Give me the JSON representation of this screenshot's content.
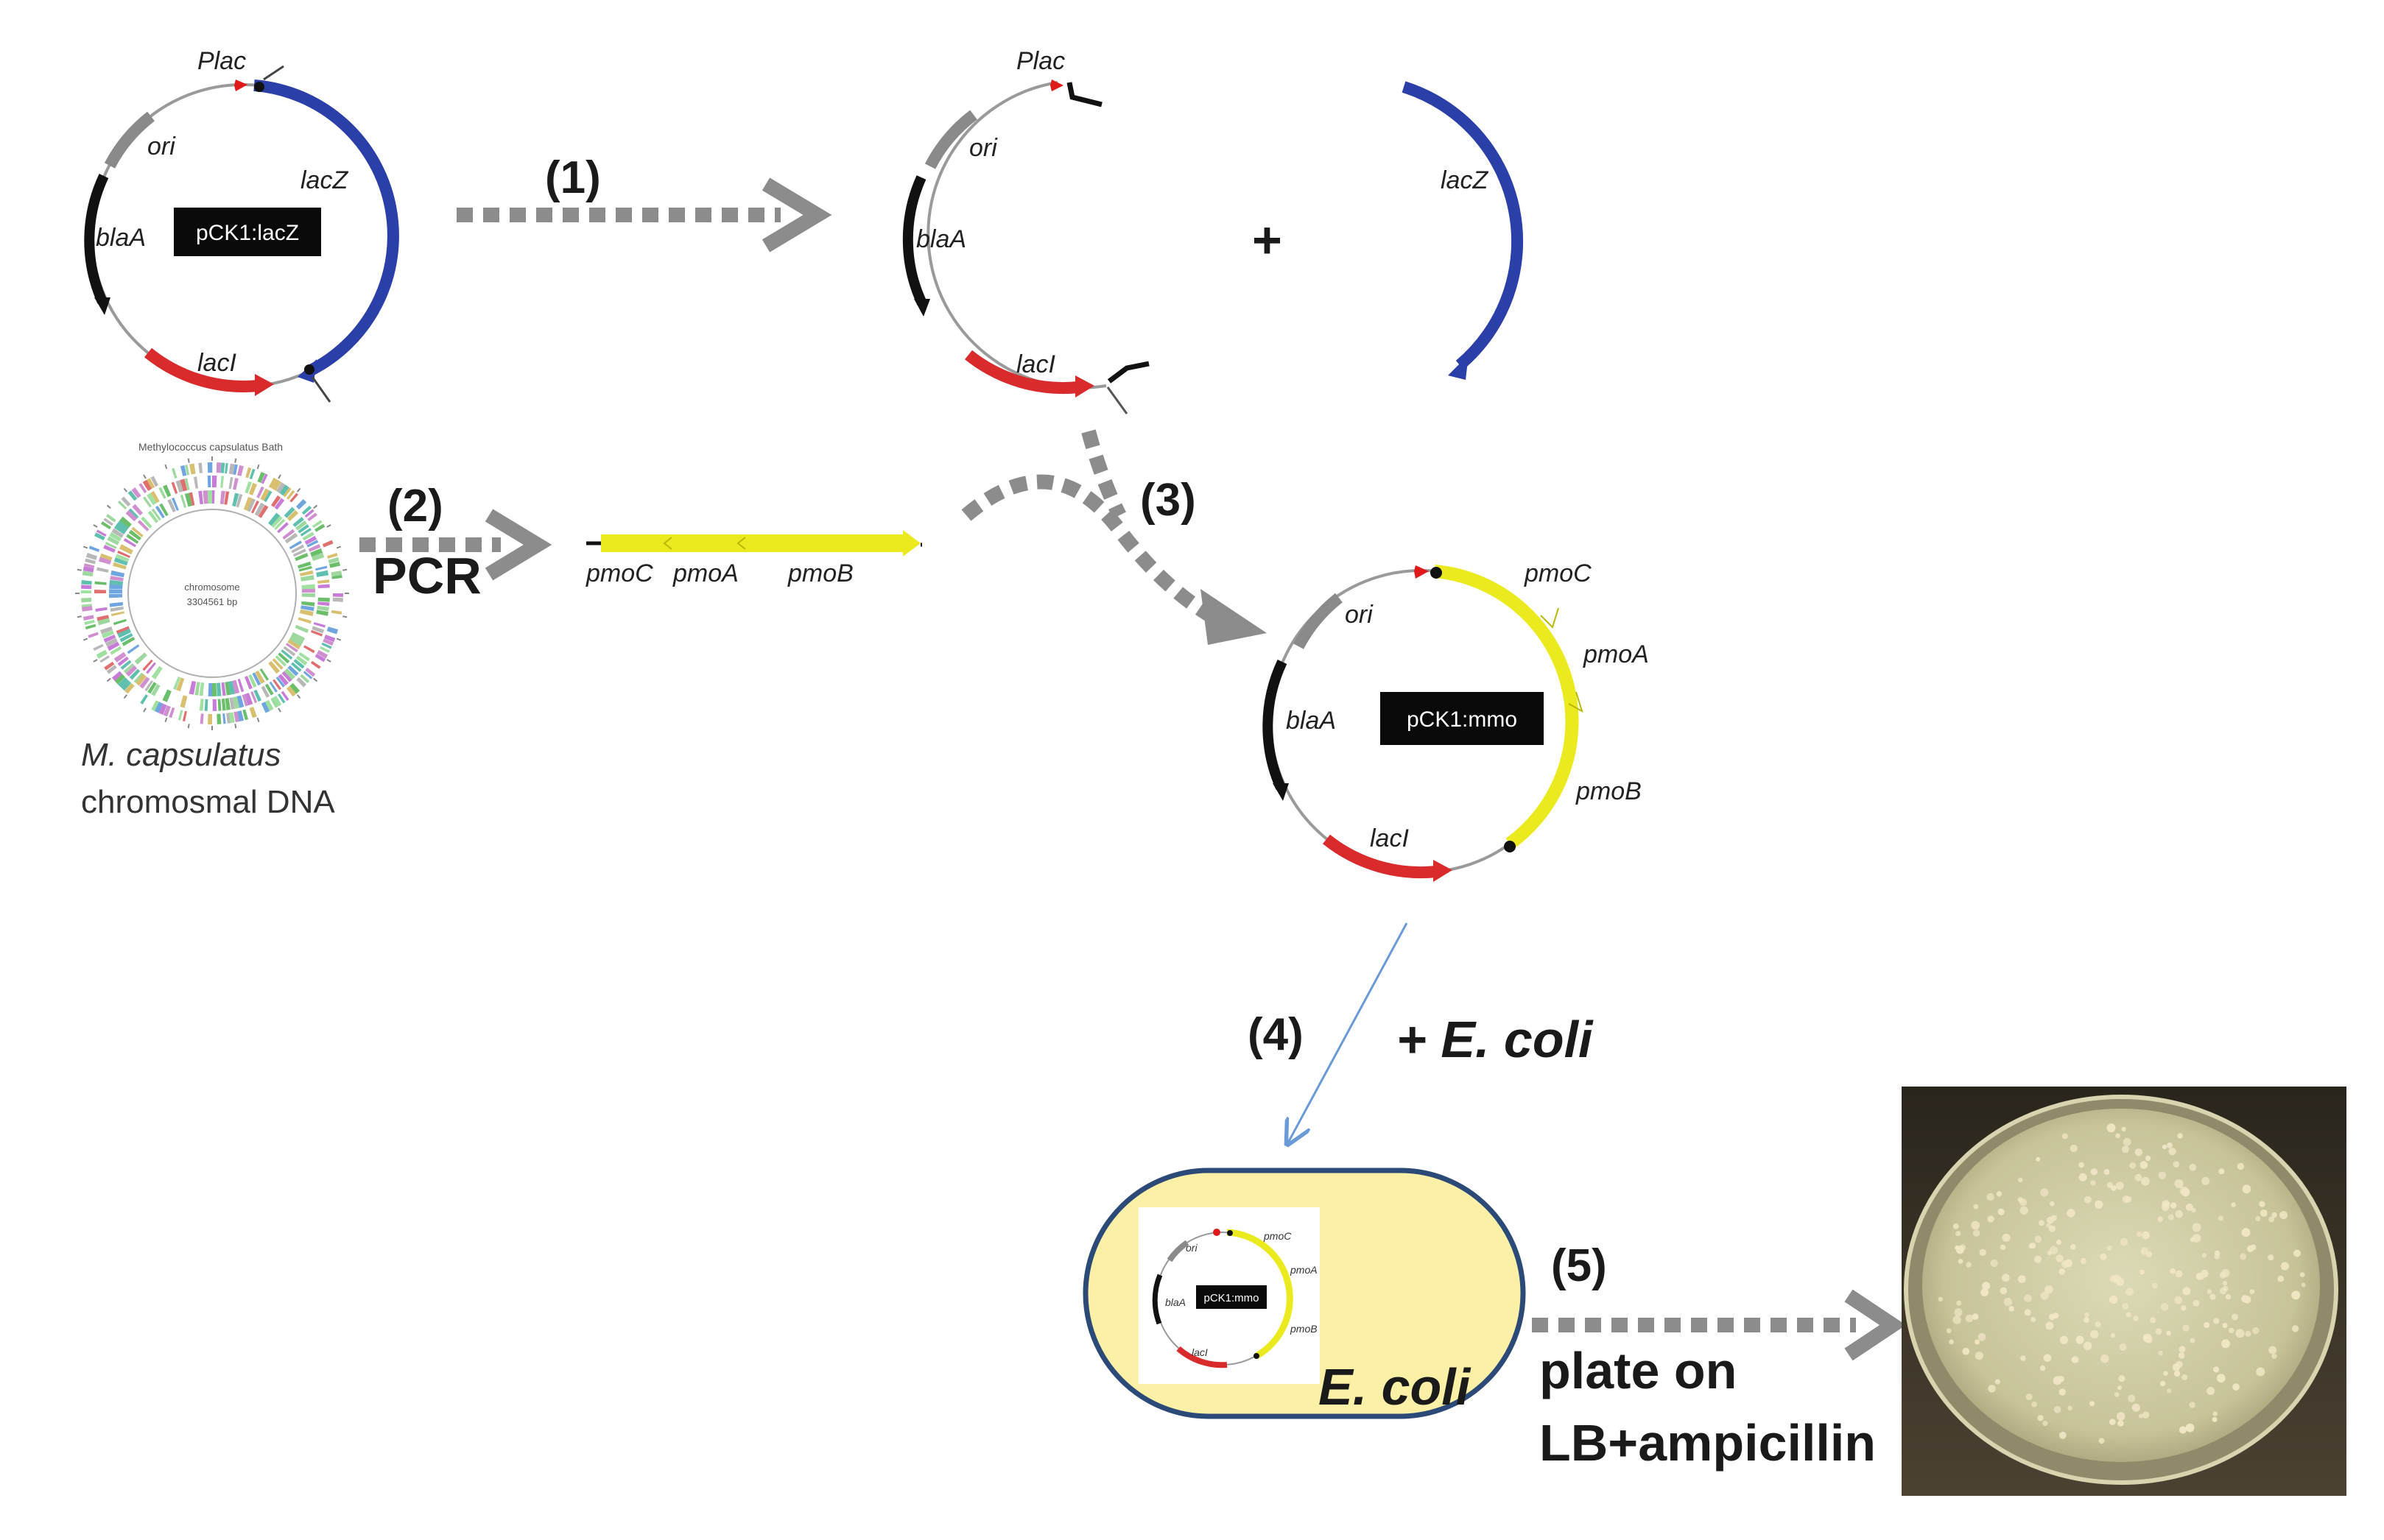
{
  "plasmid_original": {
    "name": "pCK1:lacZ",
    "promoter": "Plac",
    "genes": [
      "ori",
      "lacZ",
      "blaA",
      "lacI"
    ]
  },
  "step1": {
    "label": "(1)",
    "fragment_genes": [
      "Plac",
      "ori",
      "blaA",
      "lacI"
    ],
    "plus": "+",
    "excised_gene": "lacZ"
  },
  "step2": {
    "label": "(2)",
    "method": "PCR",
    "genome_title": "Methylococcus capsulatus Bath",
    "genome_center_line1": "chromosome",
    "genome_center_line2": "3304561 bp",
    "caption_species": "M. capsulatus",
    "caption_text": "chromosmal DNA",
    "pcr_genes": [
      "pmoC",
      "pmoA",
      "pmoB"
    ]
  },
  "step3": {
    "label": "(3)",
    "plasmid_name": "pCK1:mmo",
    "genes": [
      "ori",
      "pmoC",
      "pmoA",
      "blaA",
      "pmoB",
      "lacI"
    ]
  },
  "step4": {
    "label": "(4)",
    "add": "+ E. coli",
    "cell_label": "E. coli",
    "mini_plasmid_name": "pCK1:mmo",
    "mini_genes": [
      "ori",
      "pmoC",
      "pmoA",
      "blaA",
      "pmoB",
      "lacI"
    ]
  },
  "step5": {
    "label": "(5)",
    "line1": "plate on",
    "line2": "LB+ampicillin"
  },
  "colors": {
    "backbone": "#9a9a9a",
    "lacZ": "#2a3fa8",
    "lacI": "#d92b2b",
    "blaA": "#111111",
    "ori": "#8a8a8a",
    "pmo": "#eaea1e",
    "promoter": "#e01a1a",
    "arrow": "#8c8c8c",
    "cell_fill": "#fbf0a6",
    "cell_stroke": "#2c4a78",
    "thin_arrow": "#6a9bd8",
    "label_box": "#0a0a0a",
    "dish_bg": "#2e2a20",
    "agar": "#d9d7b2",
    "colony": "#efe6c4"
  }
}
